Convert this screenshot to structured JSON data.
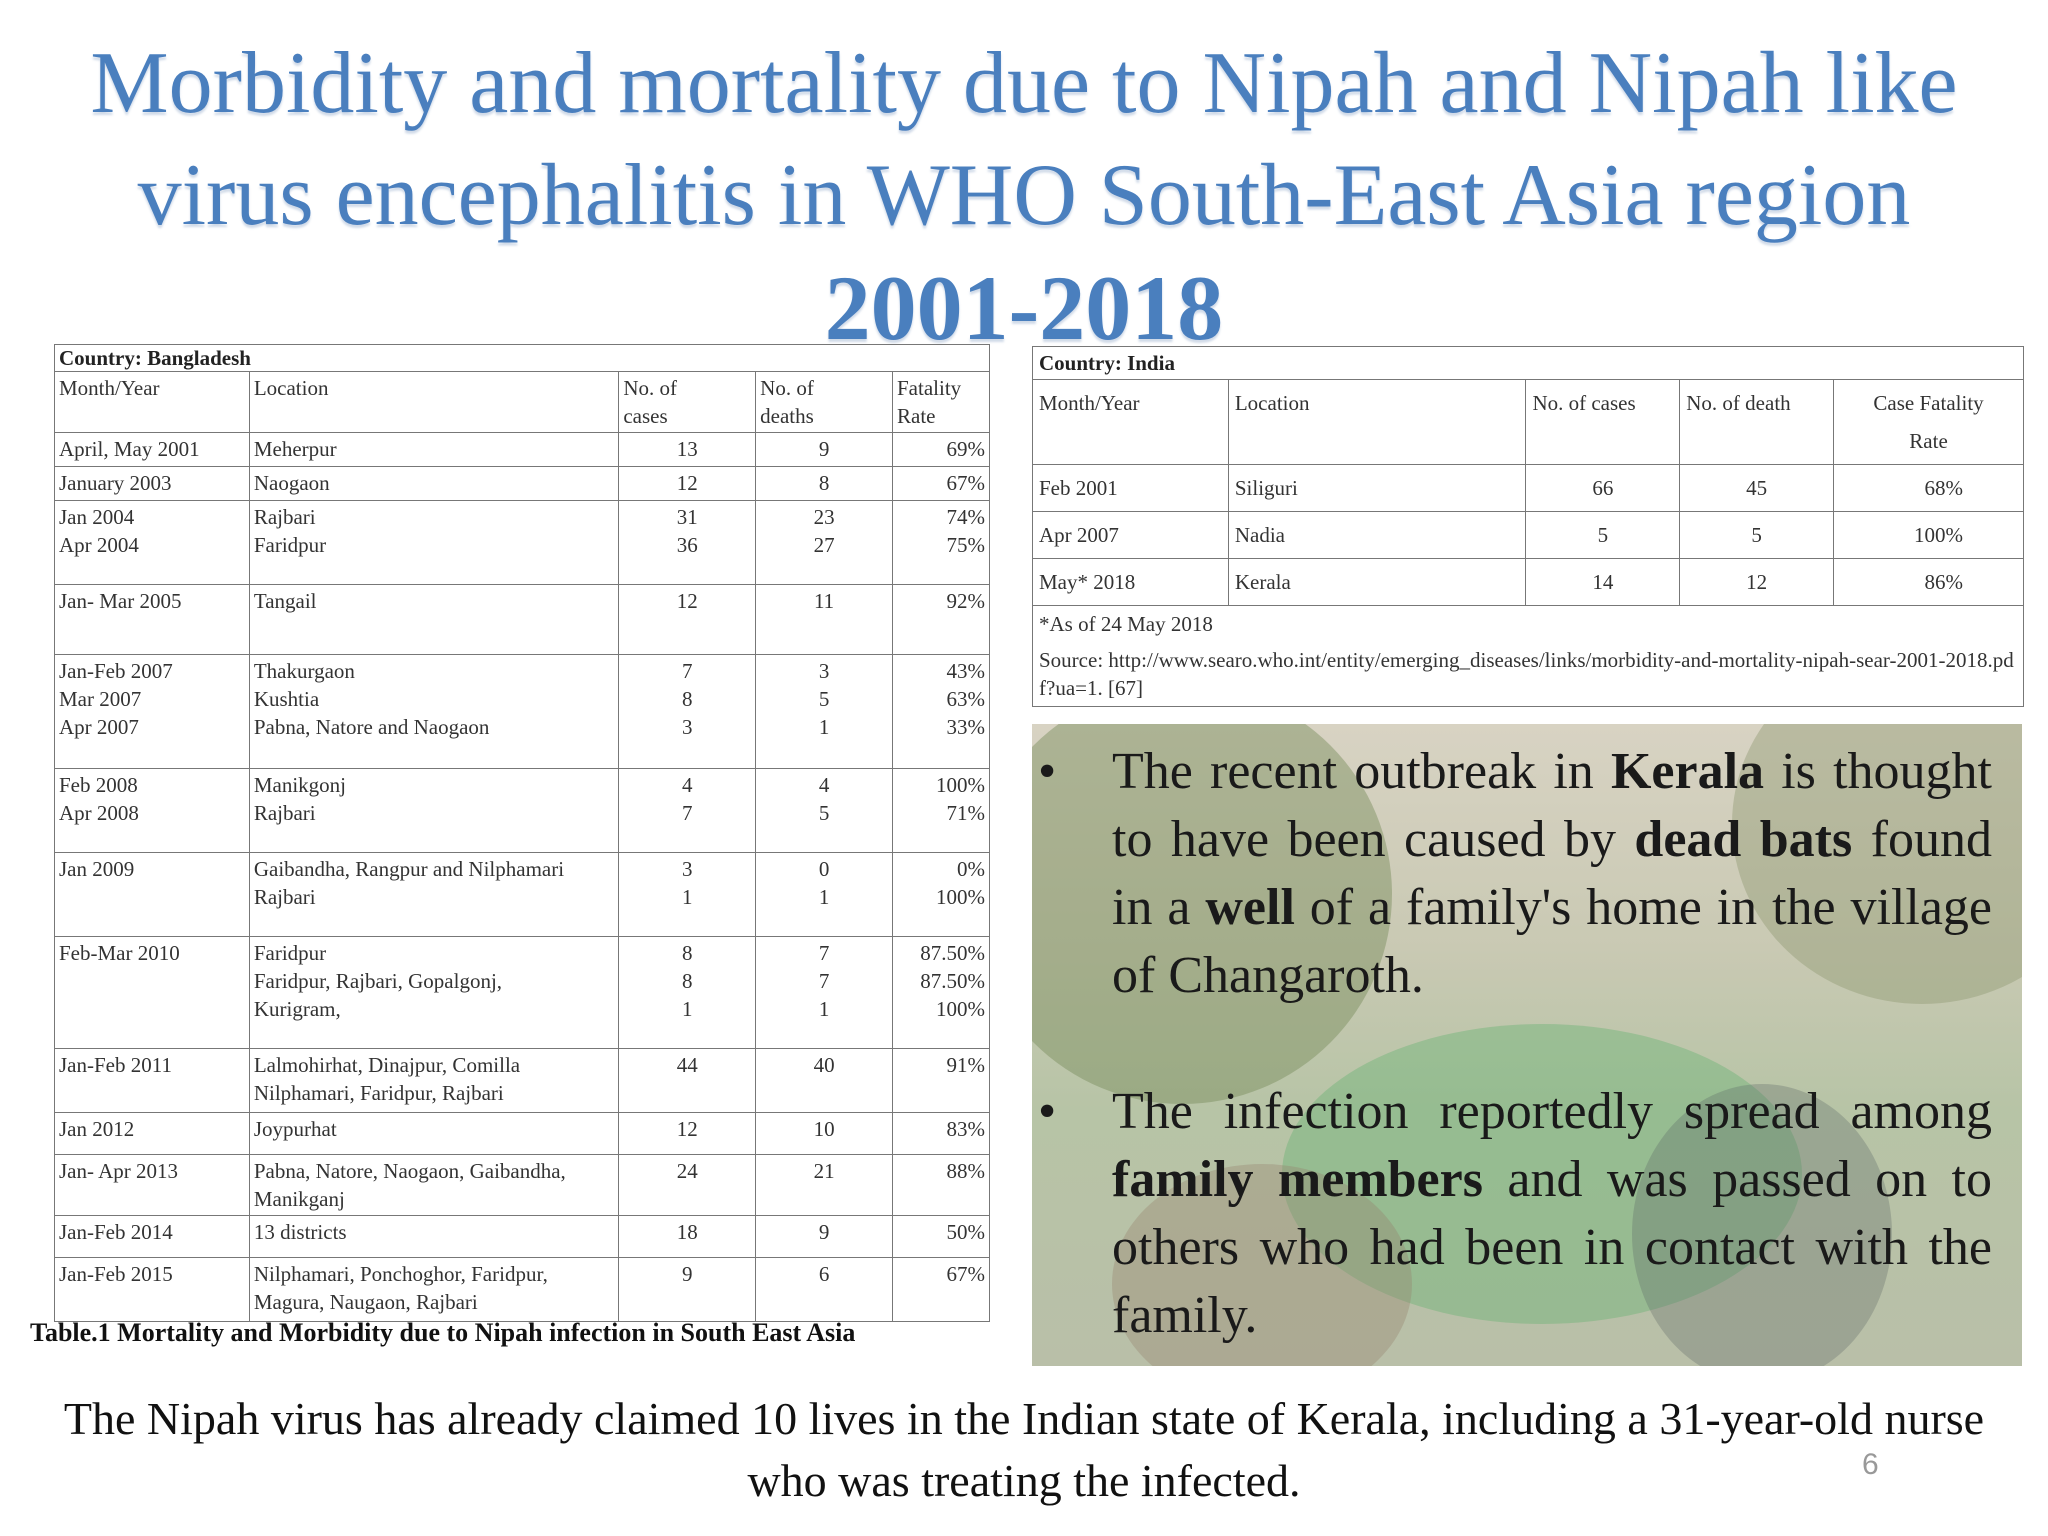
{
  "title": {
    "line1": "Morbidity and mortality due to Nipah and Nipah like",
    "line2": "virus encephalitis in WHO South-East Asia region",
    "line3": "2001-2018"
  },
  "bangladesh": {
    "country": "Country: Bangladesh",
    "headers": [
      "Month/Year",
      "Location",
      "No. of\ncases",
      "No. of\ndeaths",
      "Fatality\nRate"
    ],
    "rows": [
      {
        "date": "April, May 2001",
        "loc": "Meherpur",
        "cases": "13",
        "deaths": "9",
        "rate": "69%"
      },
      {
        "date": "January 2003",
        "loc": "Naogaon",
        "cases": "12",
        "deaths": "8",
        "rate": "67%"
      },
      {
        "date": "Jan 2004\nApr 2004",
        "loc": "Rajbari\nFaridpur",
        "cases": "31\n36",
        "deaths": "23\n27",
        "rate": "74%\n75%"
      },
      {
        "date": "Jan- Mar 2005",
        "loc": "Tangail",
        "cases": "12",
        "deaths": "11",
        "rate": "92%"
      },
      {
        "date": "Jan-Feb 2007\nMar 2007\nApr 2007",
        "loc": "Thakurgaon\nKushtia\nPabna, Natore and Naogaon",
        "cases": "7\n8\n3",
        "deaths": "3\n5\n1",
        "rate": "43%\n63%\n33%"
      },
      {
        "date": "Feb 2008\nApr 2008",
        "loc": "Manikgonj\nRajbari",
        "cases": "4\n7",
        "deaths": "4\n5",
        "rate": "100%\n71%"
      },
      {
        "date": "Jan 2009",
        "loc": "Gaibandha, Rangpur and Nilphamari\nRajbari",
        "cases": "3\n1",
        "deaths": "0\n1",
        "rate": "0%\n100%"
      },
      {
        "date": "Feb-Mar 2010",
        "loc": "Faridpur\nFaridpur, Rajbari, Gopalgonj,\nKurigram,",
        "cases": "8\n8\n1",
        "deaths": "7\n7\n1",
        "rate": "87.50%\n87.50%\n100%"
      },
      {
        "date": "Jan-Feb 2011",
        "loc": "Lalmohirhat, Dinajpur, Comilla\nNilphamari, Faridpur, Rajbari",
        "cases": "44",
        "deaths": "40",
        "rate": "91%"
      },
      {
        "date": "Jan 2012",
        "loc": "Joypurhat",
        "cases": "12",
        "deaths": "10",
        "rate": "83%"
      },
      {
        "date": "Jan- Apr 2013",
        "loc": "Pabna, Natore, Naogaon, Gaibandha,\nManikganj",
        "cases": "24",
        "deaths": "21",
        "rate": "88%"
      },
      {
        "date": "Jan-Feb 2014",
        "loc": "13 districts",
        "cases": "18",
        "deaths": "9",
        "rate": "50%"
      },
      {
        "date": "Jan-Feb 2015",
        "loc": "Nilphamari, Ponchoghor, Faridpur,\nMagura, Naugaon, Rajbari",
        "cases": "9",
        "deaths": "6",
        "rate": "67%"
      }
    ],
    "caption": "Table.1 Mortality and Morbidity due to Nipah infection in South East Asia"
  },
  "india": {
    "country": "Country: India",
    "headers": [
      "Month/Year",
      "Location",
      "No. of cases",
      "No. of death",
      "Case Fatality\nRate"
    ],
    "rows": [
      {
        "date": "Feb 2001",
        "loc": "Siliguri",
        "cases": "66",
        "deaths": "45",
        "rate": "68%"
      },
      {
        "date": "Apr 2007",
        "loc": "Nadia",
        "cases": "5",
        "deaths": "5",
        "rate": "100%"
      },
      {
        "date": "May* 2018",
        "loc": "Kerala",
        "cases": "14",
        "deaths": "12",
        "rate": "86%"
      }
    ],
    "footnote": "*As of 24 May 2018",
    "source": "Source: http://www.searo.who.int/entity/emerging_diseases/links/morbidity-and-mortality-nipah-sear-2001-2018.pdf?ua=1. [67]"
  },
  "bullets": [
    {
      "b1": "The recent outbreak in ",
      "k1": "Kerala",
      "b2": " is thought to have been caused by ",
      "k2": "dead bats",
      "b3": " found in a ",
      "k3": "well",
      "b4": " of a family's home in the village of Changaroth."
    },
    {
      "b1": "The infection reportedly spread among ",
      "k1": "family members",
      "b2": " and was passed on to others who had been in contact with the family."
    }
  ],
  "bullet_char": "•",
  "footer": "The Nipah virus has already claimed 10 lives in the Indian state of Kerala, including a 31-year-old nurse who was treating the infected.",
  "page_number": "6",
  "colors": {
    "title": "#4a7fbe"
  }
}
